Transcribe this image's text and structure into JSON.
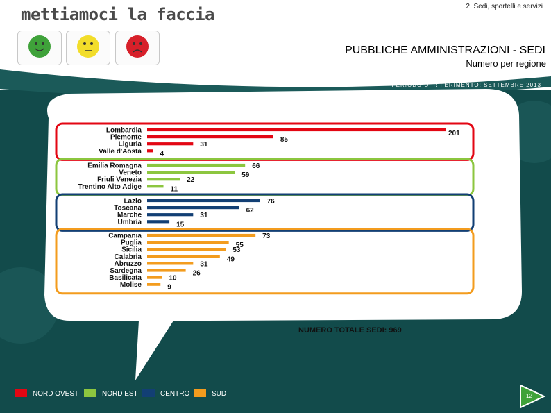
{
  "header": {
    "logo_text": "mettiamoci la faccia",
    "section_label": "2. Sedi, sportelli e servizi",
    "title": "PUBBLICHE AMMINISTRAZIONI - SEDI",
    "subtitle": "Numero per regione",
    "period": "PERIODO DI RIFERIMENTO: SETTEMBRE 2013"
  },
  "faces": [
    {
      "name": "happy",
      "color": "#3fa23a"
    },
    {
      "name": "neutral",
      "color": "#f2dd2a"
    },
    {
      "name": "sad",
      "color": "#d7202a"
    }
  ],
  "colors": {
    "nord_ovest": "#e30613",
    "nord_est": "#8cc63f",
    "centro": "#123f74",
    "sud": "#f39c1e",
    "bg_dark": "#124b4b",
    "bubble": "#ffffff"
  },
  "chart_data": {
    "type": "bar",
    "orientation": "horizontal",
    "xlim": [
      0,
      201
    ],
    "groups": [
      {
        "name": "NORD OVEST",
        "color": "#e30613",
        "categories": [
          "Lombardia",
          "Piemonte",
          "Liguria",
          "Valle d'Aosta"
        ],
        "values": [
          201,
          85,
          31,
          4
        ]
      },
      {
        "name": "NORD EST",
        "color": "#8cc63f",
        "categories": [
          "Emilia Romagna",
          "Veneto",
          "Friuli Venezia",
          "Trentino Alto Adige"
        ],
        "values": [
          66,
          59,
          22,
          11
        ]
      },
      {
        "name": "CENTRO",
        "color": "#123f74",
        "categories": [
          "Lazio",
          "Toscana",
          "Marche",
          "Umbria"
        ],
        "values": [
          76,
          62,
          31,
          15
        ]
      },
      {
        "name": "SUD",
        "color": "#f39c1e",
        "categories": [
          "Campania",
          "Puglia",
          "Sicilia",
          "Calabria",
          "Abruzzo",
          "Sardegna",
          "Basilicata",
          "Molise"
        ],
        "values": [
          73,
          55,
          53,
          49,
          31,
          26,
          10,
          9
        ]
      }
    ],
    "total_label": "NUMERO TOTALE SEDI: 969"
  },
  "legend": [
    {
      "label": "NORD OVEST",
      "color": "#e30613"
    },
    {
      "label": "NORD EST",
      "color": "#8cc63f"
    },
    {
      "label": "CENTRO",
      "color": "#123f74"
    },
    {
      "label": "SUD",
      "color": "#f39c1e"
    }
  ],
  "footer": {
    "page_number": "12"
  }
}
